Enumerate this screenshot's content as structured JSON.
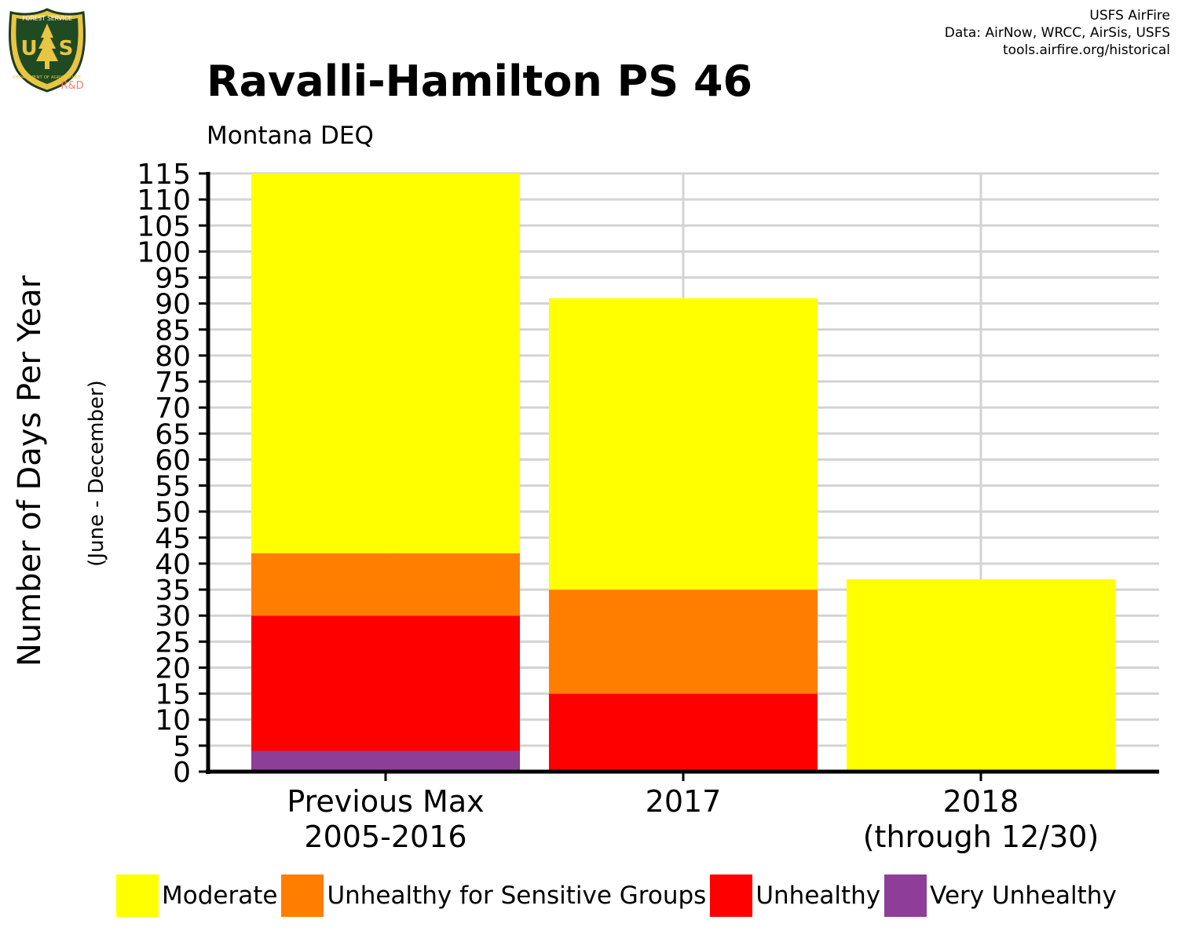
{
  "header": {
    "logo": {
      "icon": "usfs-shield-icon",
      "top_text": "FOREST SERVICE",
      "letters": "U  S",
      "bottom_text": "DEPARTMENT OF AGRICULTURE",
      "tag": "R&D"
    },
    "credits": [
      "USFS AirFire",
      "Data: AirNow, WRCC, AirSis, USFS",
      "tools.airfire.org/historical"
    ],
    "title": "Ravalli-Hamilton PS 46",
    "subtitle": "Montana DEQ"
  },
  "chart_data": {
    "type": "bar",
    "stacked": true,
    "title": "Ravalli-Hamilton PS 46",
    "subtitle": "Montana DEQ",
    "ylabel": "Number of Days Per Year",
    "ylabel_sub": "(June - December)",
    "ylim": [
      0,
      115
    ],
    "yticks": [
      0,
      5,
      10,
      15,
      20,
      25,
      30,
      35,
      40,
      45,
      50,
      55,
      60,
      65,
      70,
      75,
      80,
      85,
      90,
      95,
      100,
      105,
      110,
      115
    ],
    "grid": true,
    "legend_position": "bottom",
    "categories": [
      [
        "Previous Max",
        "2005-2016"
      ],
      [
        "2017"
      ],
      [
        "2018",
        "(through 12/30)"
      ]
    ],
    "series": [
      {
        "name": "Very Unhealthy",
        "color": "#8e3e97",
        "values": [
          4,
          0,
          0
        ]
      },
      {
        "name": "Unhealthy",
        "color": "#ff0000",
        "values": [
          26,
          15,
          0
        ]
      },
      {
        "name": "Unhealthy for Sensitive Groups",
        "color": "#ff7e00",
        "values": [
          12,
          20,
          0
        ]
      },
      {
        "name": "Moderate",
        "color": "#ffff00",
        "values": [
          73,
          56,
          37
        ]
      }
    ],
    "legend_order": [
      "Moderate",
      "Unhealthy for Sensitive Groups",
      "Unhealthy",
      "Very Unhealthy"
    ]
  }
}
